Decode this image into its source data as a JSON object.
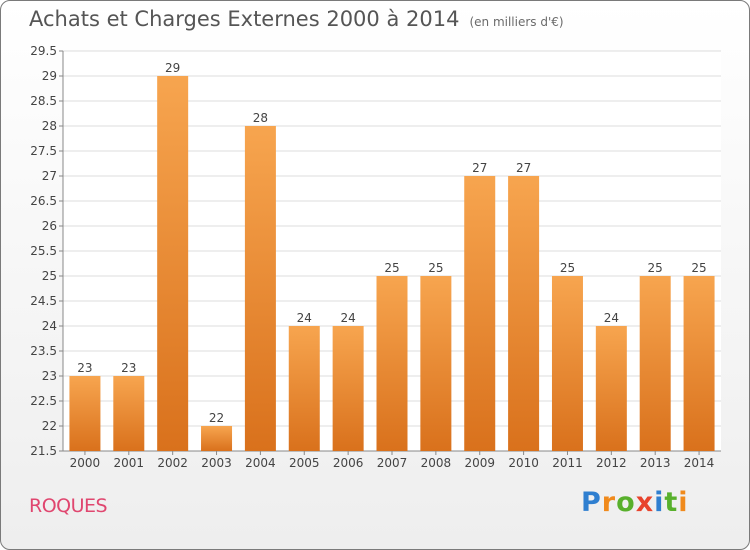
{
  "header": {
    "title": "Achats et Charges Externes 2000 à 2014",
    "subtitle": "(en milliers d'€)"
  },
  "footer": {
    "commune": "ROQUES",
    "brand": "Proxiti"
  },
  "colors": {
    "bar_light": "#f7a54f",
    "bar_dark": "#d9711c",
    "title": "#555555",
    "commune": "#e0466f",
    "grid": "#dddddd"
  },
  "chart_data": {
    "type": "bar",
    "categories": [
      "2000",
      "2001",
      "2002",
      "2003",
      "2004",
      "2005",
      "2006",
      "2007",
      "2008",
      "2009",
      "2010",
      "2011",
      "2012",
      "2013",
      "2014"
    ],
    "values": [
      23,
      23,
      29,
      22,
      28,
      24,
      24,
      25,
      25,
      27,
      27,
      25,
      24,
      25,
      25
    ],
    "data_labels": [
      "23",
      "23",
      "29",
      "22",
      "28",
      "24",
      "24",
      "25",
      "25",
      "27",
      "27",
      "25",
      "24",
      "25",
      "25"
    ],
    "y_ticks": [
      "21.5",
      "22",
      "22.5",
      "23",
      "23.5",
      "24",
      "24.5",
      "25",
      "25.5",
      "26",
      "26.5",
      "27",
      "27.5",
      "28",
      "28.5",
      "29",
      "29.5"
    ],
    "ylim": [
      21.5,
      29.5
    ],
    "grid": true,
    "xlabel": "",
    "ylabel": ""
  }
}
